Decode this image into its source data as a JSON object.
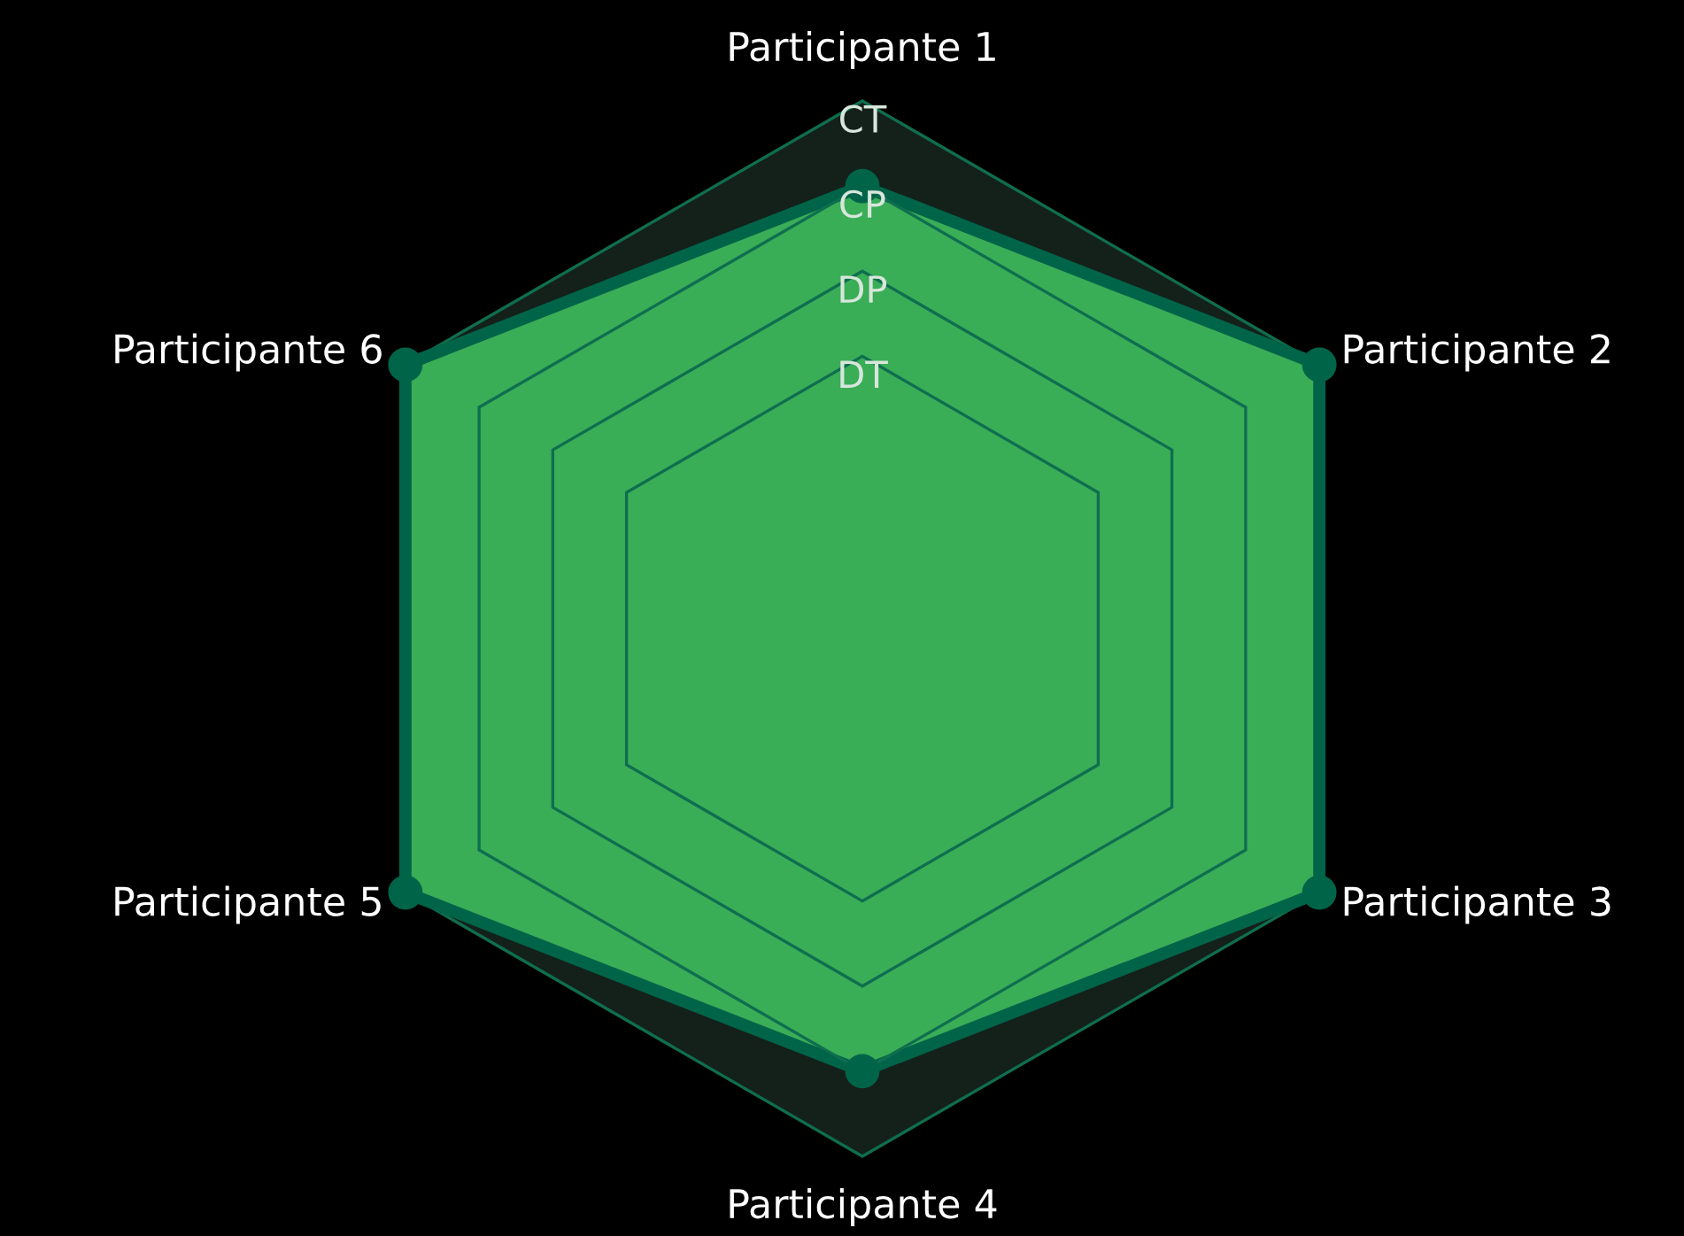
{
  "chart_data": {
    "type": "radar",
    "categories": [
      "Participante 1",
      "Participante 2",
      "Participante 3",
      "Participante 4",
      "Participante 5",
      "Participante 6"
    ],
    "series": [
      {
        "color": "#3aad57",
        "values": [
          3,
          4,
          4,
          3,
          4,
          4
        ]
      }
    ],
    "ylim": [
      -2.2,
      4
    ],
    "yticks": [
      {
        "value": 1,
        "label": "DT"
      },
      {
        "value": 2,
        "label": "DP"
      },
      {
        "value": 3,
        "label": "CP"
      },
      {
        "value": 4,
        "label": "CT"
      }
    ],
    "grid": true,
    "marker": "circle"
  }
}
